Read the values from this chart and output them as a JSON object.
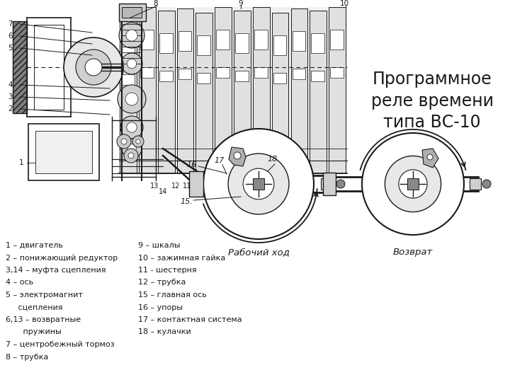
{
  "title": "Программное\nреле времени\nтипа ВС-10",
  "bg_color": "#ffffff",
  "line_color": "#1a1a1a",
  "legend_left": [
    "1 – двигатель",
    "2 – понижающий редуктор",
    "3,14 – муфта сцепления",
    "4 – ось",
    "5 – электромагнит",
    "     сцепления",
    "6,13 – возвратные",
    "       пружины",
    "7 – центробежный тормоз",
    "8 – трубка"
  ],
  "legend_right": [
    "9 – шкалы",
    "10 – зажимная гайка",
    "11 - шестерня",
    "12 – трубка",
    "15 – главная ось",
    "16 – упоры",
    "17 – контактная система",
    "18 – кулачки"
  ]
}
